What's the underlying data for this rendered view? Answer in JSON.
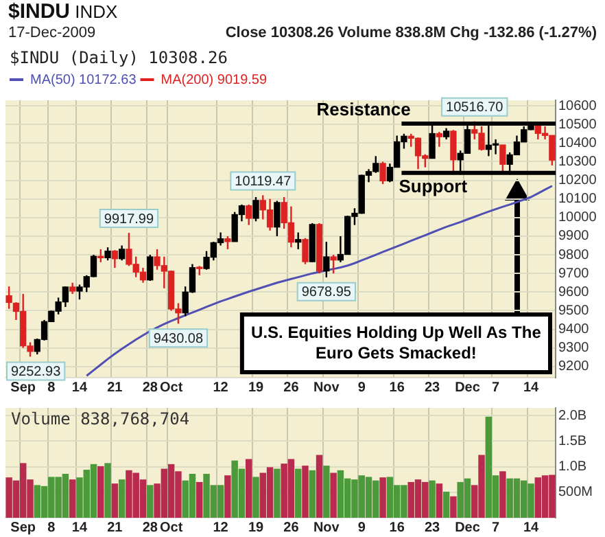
{
  "chart_data": [
    {
      "type": "candlestick",
      "title": "$INDU",
      "legend": "top left",
      "grid": true,
      "marker": "none",
      "annotations": [
        "INDX",
        "17-Dec-2009",
        "Close 10308.26  Volume 838.8M  Chg -132.86 (-1.27%)",
        "$INDU (Daily) 10308.26",
        "U.S. Equities Holding Up Well As The Euro Gets Smacked!",
        {
          "text": "9252.93",
          "y": 9252.93
        },
        {
          "text": "9917.99",
          "y": 9917.99
        },
        {
          "text": "9430.08",
          "y": 9430.08
        },
        {
          "text": "10119.47",
          "y": 10119.47
        },
        {
          "text": "9678.95",
          "y": 9678.95
        },
        {
          "text": "10516.70",
          "y": 10516.7
        }
      ],
      "categories": [
        null,
        null,
        "Sep",
        null,
        null,
        null,
        "8",
        null,
        null,
        null,
        "14",
        null,
        null,
        null,
        null,
        "21",
        null,
        null,
        null,
        null,
        "28",
        null,
        null,
        "Oct",
        null,
        null,
        null,
        null,
        null,
        null,
        "12",
        null,
        null,
        null,
        null,
        "19",
        null,
        null,
        null,
        null,
        "26",
        null,
        null,
        null,
        null,
        "Nov",
        null,
        null,
        null,
        null,
        "9",
        null,
        null,
        null,
        null,
        "16",
        null,
        null,
        null,
        null,
        "23",
        null,
        null,
        null,
        null,
        "Dec",
        null,
        null,
        null,
        "7",
        null,
        null,
        null,
        null,
        "14",
        null,
        null,
        null
      ],
      "ohlc": [
        [
          9580,
          9630,
          9510,
          9544
        ],
        [
          9540,
          9545,
          9450,
          9496
        ],
        [
          9496,
          9590,
          9300,
          9311
        ],
        [
          9310,
          9330,
          9252.93,
          9281
        ],
        [
          9281,
          9350,
          9265,
          9345
        ],
        [
          9345,
          9450,
          9340,
          9441
        ],
        [
          9441,
          9500,
          9440,
          9497
        ],
        [
          9497,
          9570,
          9480,
          9547
        ],
        [
          9547,
          9630,
          9520,
          9627
        ],
        [
          9627,
          9650,
          9590,
          9605
        ],
        [
          9605,
          9640,
          9560,
          9627
        ],
        [
          9627,
          9690,
          9600,
          9683
        ],
        [
          9683,
          9800,
          9680,
          9792
        ],
        [
          9792,
          9830,
          9760,
          9784
        ],
        [
          9784,
          9840,
          9770,
          9820
        ],
        [
          9820,
          9825,
          9730,
          9779
        ],
        [
          9779,
          9850,
          9770,
          9830
        ],
        [
          9830,
          9917.99,
          9740,
          9749
        ],
        [
          9749,
          9790,
          9680,
          9707
        ],
        [
          9707,
          9730,
          9650,
          9665
        ],
        [
          9665,
          9800,
          9660,
          9789
        ],
        [
          9789,
          9830,
          9720,
          9742
        ],
        [
          9742,
          9790,
          9620,
          9712
        ],
        [
          9712,
          9715,
          9500,
          9509
        ],
        [
          9509,
          9540,
          9430.08,
          9488
        ],
        [
          9488,
          9630,
          9470,
          9600
        ],
        [
          9600,
          9750,
          9595,
          9731
        ],
        [
          9731,
          9740,
          9690,
          9726
        ],
        [
          9726,
          9820,
          9720,
          9787
        ],
        [
          9787,
          9870,
          9770,
          9865
        ],
        [
          9865,
          9920,
          9850,
          9886
        ],
        [
          9886,
          9900,
          9830,
          9871
        ],
        [
          9871,
          10030,
          9870,
          10016
        ],
        [
          10016,
          10070,
          9980,
          10063
        ],
        [
          10063,
          10070,
          9960,
          9996
        ],
        [
          9996,
          10110,
          9980,
          10092
        ],
        [
          10092,
          10119.47,
          9990,
          10041
        ],
        [
          10041,
          10100,
          9930,
          9949
        ],
        [
          9949,
          10090,
          9900,
          10081
        ],
        [
          10081,
          10110,
          9940,
          9972
        ],
        [
          9972,
          10060,
          9840,
          9868
        ],
        [
          9868,
          9920,
          9830,
          9882
        ],
        [
          9882,
          9890,
          9750,
          9763
        ],
        [
          9763,
          9970,
          9760,
          9963
        ],
        [
          9963,
          9970,
          9700,
          9713
        ],
        [
          9713,
          9870,
          9678.95,
          9789
        ],
        [
          9789,
          9800,
          9700,
          9772
        ],
        [
          9772,
          9900,
          9760,
          9802
        ],
        [
          9802,
          10010,
          9800,
          10006
        ],
        [
          10006,
          10050,
          9960,
          10023
        ],
        [
          10023,
          10230,
          10020,
          10227
        ],
        [
          10227,
          10260,
          10190,
          10247
        ],
        [
          10247,
          10330,
          10240,
          10291
        ],
        [
          10291,
          10300,
          10180,
          10197
        ],
        [
          10197,
          10290,
          10190,
          10270
        ],
        [
          10270,
          10440,
          10270,
          10407
        ],
        [
          10407,
          10450,
          10370,
          10437
        ],
        [
          10437,
          10450,
          10380,
          10426
        ],
        [
          10426,
          10430,
          10260,
          10332
        ],
        [
          10332,
          10340,
          10270,
          10318
        ],
        [
          10318,
          10500,
          10318,
          10451
        ],
        [
          10451,
          10460,
          10380,
          10434
        ],
        [
          10434,
          10480,
          10420,
          10464
        ],
        [
          10464,
          10470,
          10240,
          10310
        ],
        [
          10310,
          10360,
          10230,
          10345
        ],
        [
          10345,
          10500,
          10345,
          10472
        ],
        [
          10472,
          10516.7,
          10420,
          10453
        ],
        [
          10453,
          10490,
          10360,
          10366
        ],
        [
          10366,
          10510,
          10330,
          10389
        ],
        [
          10389,
          10420,
          10340,
          10390
        ],
        [
          10390,
          10390,
          10240,
          10286
        ],
        [
          10286,
          10350,
          10230,
          10337
        ],
        [
          10337,
          10440,
          10337,
          10406
        ],
        [
          10406,
          10490,
          10406,
          10472
        ],
        [
          10472,
          10510,
          10470,
          10501
        ],
        [
          10501,
          10510,
          10420,
          10452
        ],
        [
          10452,
          10490,
          10420,
          10441
        ],
        [
          10441,
          10441,
          10280,
          10308.26
        ]
      ],
      "colors": [
        "#dd2222",
        "#dd2222",
        "#dd2222",
        "#dd2222",
        "#000000",
        "#000000",
        "#000000",
        "#000000",
        "#000000",
        "#dd2222",
        "#000000",
        "#000000",
        "#000000",
        "#dd2222",
        "#000000",
        "#dd2222",
        "#000000",
        "#dd2222",
        "#dd2222",
        "#dd2222",
        "#000000",
        "#dd2222",
        "#dd2222",
        "#dd2222",
        "#dd2222",
        "#000000",
        "#000000",
        "#dd2222",
        "#000000",
        "#000000",
        "#000000",
        "#dd2222",
        "#000000",
        "#000000",
        "#dd2222",
        "#000000",
        "#dd2222",
        "#dd2222",
        "#000000",
        "#dd2222",
        "#dd2222",
        "#000000",
        "#dd2222",
        "#000000",
        "#dd2222",
        "#000000",
        "#dd2222",
        "#000000",
        "#000000",
        "#000000",
        "#000000",
        "#000000",
        "#000000",
        "#dd2222",
        "#000000",
        "#000000",
        "#000000",
        "#dd2222",
        "#dd2222",
        "#dd2222",
        "#000000",
        "#dd2222",
        "#000000",
        "#dd2222",
        "#000000",
        "#000000",
        "#dd2222",
        "#dd2222",
        "#000000",
        "#000000",
        "#dd2222",
        "#000000",
        "#000000",
        "#000000",
        "#000000",
        "#dd2222",
        "#dd2222",
        "#dd2222"
      ],
      "series": [
        {
          "name": "MA(50) 10172.63",
          "type": "line",
          "color": "#5050b4",
          "values": [
            null,
            null,
            null,
            null,
            null,
            null,
            null,
            null,
            null,
            null,
            null,
            9150,
            9180,
            9210,
            9240,
            9268,
            9295,
            9320,
            9345,
            9368,
            9390,
            9410,
            9428,
            9445,
            9460,
            9475,
            9490,
            9505,
            9520,
            9535,
            9550,
            9563,
            9576,
            9589,
            9602,
            9614,
            9626,
            9638,
            9650,
            9660,
            9670,
            9680,
            9690,
            9700,
            9708,
            9716,
            9724,
            9732,
            9742,
            9755,
            9770,
            9785,
            9800,
            9815,
            9830,
            9845,
            9860,
            9875,
            9890,
            9905,
            9920,
            9935,
            9950,
            9963,
            9976,
            9990,
            10004,
            10018,
            10032,
            10045,
            10058,
            10070,
            10083,
            10096,
            10110,
            10130,
            10150,
            10170
          ]
        },
        {
          "name": "MA(200) 9019.59",
          "type": "line",
          "color": "#e02020",
          "values": [
            null,
            null,
            null,
            null,
            null,
            null,
            null,
            null,
            null,
            null,
            null,
            null,
            null,
            null,
            null,
            null,
            null,
            null,
            null,
            null,
            null,
            null,
            null,
            null,
            null,
            null,
            null,
            null,
            null,
            null,
            null,
            null,
            null,
            null,
            null,
            null,
            null,
            null,
            null,
            null,
            null,
            null,
            null,
            null,
            null,
            null,
            null,
            null,
            null,
            null,
            null,
            null,
            null,
            null,
            null,
            null,
            null,
            null,
            null,
            null,
            null,
            null,
            null,
            null,
            null,
            null,
            null,
            null,
            null,
            null,
            null,
            null,
            null,
            null,
            null,
            null,
            null,
            null
          ]
        }
      ],
      "ylim": [
        9140,
        10630
      ],
      "yticks": [
        9200,
        9300,
        9400,
        9500,
        9600,
        9700,
        9800,
        9900,
        10000,
        10100,
        10200,
        10300,
        10400,
        10500,
        10600
      ],
      "ref_lines": [
        {
          "axis": "y",
          "value": 10505,
          "label": "Resistance",
          "color": "#000000"
        },
        {
          "axis": "y",
          "value": 10240,
          "label": "Support",
          "color": "#000000"
        }
      ]
    },
    {
      "type": "bar",
      "grid": true,
      "annotations": [
        "Volume 838,768,704"
      ],
      "categories": [
        null,
        null,
        "Sep",
        null,
        null,
        null,
        "8",
        null,
        null,
        null,
        "14",
        null,
        null,
        null,
        null,
        "21",
        null,
        null,
        null,
        null,
        "28",
        null,
        null,
        "Oct",
        null,
        null,
        null,
        null,
        null,
        null,
        "12",
        null,
        null,
        null,
        null,
        "19",
        null,
        null,
        null,
        null,
        "26",
        null,
        null,
        null,
        null,
        "Nov",
        null,
        null,
        null,
        null,
        "9",
        null,
        null,
        null,
        null,
        "16",
        null,
        null,
        null,
        null,
        "23",
        null,
        null,
        null,
        null,
        "Dec",
        null,
        null,
        null,
        "7",
        null,
        null,
        null,
        null,
        "14",
        null,
        null,
        null
      ],
      "values": [
        790000000,
        730000000,
        1070000000,
        750000000,
        640000000,
        620000000,
        800000000,
        800000000,
        860000000,
        750000000,
        790000000,
        940000000,
        1050000000,
        1010000000,
        1070000000,
        670000000,
        750000000,
        930000000,
        880000000,
        750000000,
        640000000,
        670000000,
        960000000,
        1050000000,
        910000000,
        730000000,
        860000000,
        700000000,
        860000000,
        640000000,
        640000000,
        830000000,
        1120000000,
        960000000,
        1150000000,
        800000000,
        880000000,
        990000000,
        960000000,
        1060000000,
        1150000000,
        960000000,
        1020000000,
        930000000,
        1230000000,
        1020000000,
        880000000,
        930000000,
        770000000,
        750000000,
        830000000,
        800000000,
        730000000,
        790000000,
        800000000,
        640000000,
        640000000,
        700000000,
        750000000,
        700000000,
        730000000,
        670000000,
        510000000,
        420000000,
        700000000,
        770000000,
        640000000,
        1230000000,
        1980000000,
        830000000,
        910000000,
        770000000,
        770000000,
        730000000,
        670000000,
        790000000,
        830000000,
        840000000
      ],
      "colors": [
        "#b82a4e",
        "#b82a4e",
        "#b82a4e",
        "#b82a4e",
        "#4c9a3c",
        "#4c9a3c",
        "#4c9a3c",
        "#4c9a3c",
        "#4c9a3c",
        "#b82a4e",
        "#4c9a3c",
        "#4c9a3c",
        "#4c9a3c",
        "#b82a4e",
        "#4c9a3c",
        "#b82a4e",
        "#4c9a3c",
        "#b82a4e",
        "#b82a4e",
        "#b82a4e",
        "#4c9a3c",
        "#b82a4e",
        "#b82a4e",
        "#b82a4e",
        "#b82a4e",
        "#4c9a3c",
        "#4c9a3c",
        "#b82a4e",
        "#4c9a3c",
        "#4c9a3c",
        "#4c9a3c",
        "#b82a4e",
        "#4c9a3c",
        "#4c9a3c",
        "#b82a4e",
        "#4c9a3c",
        "#b82a4e",
        "#b82a4e",
        "#4c9a3c",
        "#b82a4e",
        "#b82a4e",
        "#4c9a3c",
        "#b82a4e",
        "#4c9a3c",
        "#b82a4e",
        "#4c9a3c",
        "#b82a4e",
        "#4c9a3c",
        "#4c9a3c",
        "#4c9a3c",
        "#4c9a3c",
        "#4c9a3c",
        "#4c9a3c",
        "#b82a4e",
        "#4c9a3c",
        "#4c9a3c",
        "#4c9a3c",
        "#b82a4e",
        "#b82a4e",
        "#b82a4e",
        "#4c9a3c",
        "#b82a4e",
        "#4c9a3c",
        "#b82a4e",
        "#4c9a3c",
        "#4c9a3c",
        "#b82a4e",
        "#b82a4e",
        "#4c9a3c",
        "#4c9a3c",
        "#b82a4e",
        "#4c9a3c",
        "#4c9a3c",
        "#4c9a3c",
        "#4c9a3c",
        "#b82a4e",
        "#b82a4e",
        "#b82a4e"
      ],
      "ylim": [
        0,
        2150000000
      ],
      "yticks": [
        {
          "value": 500000000,
          "label": "500M"
        },
        {
          "value": 1000000000,
          "label": "1.0B"
        },
        {
          "value": 1500000000,
          "label": "1.5B"
        },
        {
          "value": 2000000000,
          "label": "2.0B"
        }
      ]
    }
  ]
}
